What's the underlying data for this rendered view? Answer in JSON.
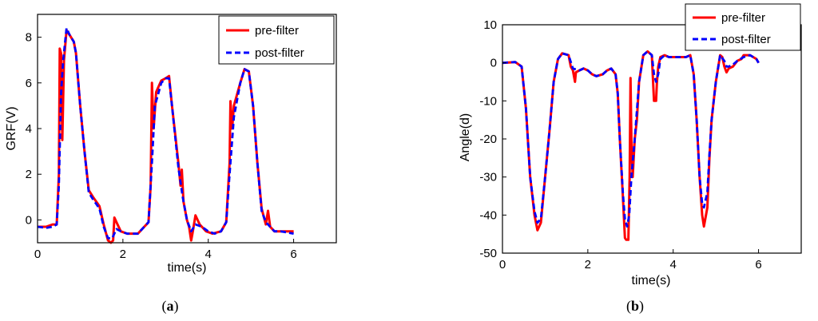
{
  "chart_data": [
    {
      "type": "line",
      "caption": {
        "open": "(",
        "letter": "a",
        "close": ")"
      },
      "xlabel": "time(s)",
      "ylabel": "GRF(V)",
      "xlim": [
        0,
        7
      ],
      "ylim": [
        -1,
        9
      ],
      "xticks": [
        0,
        2,
        4,
        6
      ],
      "yticks": [
        0,
        2,
        4,
        6,
        8
      ],
      "legend_position": "top-right",
      "grid": false,
      "series": [
        {
          "name": "pre-filter",
          "color": "#ff0000",
          "style": "solid",
          "points": [
            [
              0,
              -0.3
            ],
            [
              0.2,
              -0.3
            ],
            [
              0.35,
              -0.2
            ],
            [
              0.45,
              -0.2
            ],
            [
              0.5,
              2.0
            ],
            [
              0.52,
              7.5
            ],
            [
              0.55,
              7.3
            ],
            [
              0.58,
              3.5
            ],
            [
              0.62,
              7.0
            ],
            [
              0.68,
              8.3
            ],
            [
              0.75,
              8.1
            ],
            [
              0.85,
              7.8
            ],
            [
              0.9,
              7.3
            ],
            [
              1.0,
              5.0
            ],
            [
              1.1,
              3.0
            ],
            [
              1.2,
              1.3
            ],
            [
              1.3,
              1.0
            ],
            [
              1.45,
              0.6
            ],
            [
              1.55,
              -0.2
            ],
            [
              1.65,
              -0.9
            ],
            [
              1.72,
              -1.0
            ],
            [
              1.77,
              -0.9
            ],
            [
              1.8,
              0.1
            ],
            [
              1.85,
              -0.1
            ],
            [
              1.95,
              -0.5
            ],
            [
              2.1,
              -0.6
            ],
            [
              2.35,
              -0.6
            ],
            [
              2.5,
              -0.3
            ],
            [
              2.6,
              -0.1
            ],
            [
              2.65,
              1.5
            ],
            [
              2.68,
              6.0
            ],
            [
              2.72,
              4.0
            ],
            [
              2.78,
              5.6
            ],
            [
              2.9,
              6.1
            ],
            [
              3.0,
              6.2
            ],
            [
              3.08,
              6.3
            ],
            [
              3.15,
              5.0
            ],
            [
              3.3,
              2.5
            ],
            [
              3.35,
              1.5
            ],
            [
              3.38,
              2.2
            ],
            [
              3.42,
              0.8
            ],
            [
              3.5,
              0.0
            ],
            [
              3.55,
              -0.3
            ],
            [
              3.6,
              -0.9
            ],
            [
              3.63,
              -0.6
            ],
            [
              3.7,
              0.2
            ],
            [
              3.8,
              -0.2
            ],
            [
              3.95,
              -0.5
            ],
            [
              4.1,
              -0.6
            ],
            [
              4.3,
              -0.5
            ],
            [
              4.42,
              -0.1
            ],
            [
              4.5,
              2.5
            ],
            [
              4.52,
              5.2
            ],
            [
              4.56,
              4.0
            ],
            [
              4.6,
              5.0
            ],
            [
              4.75,
              6.0
            ],
            [
              4.85,
              6.6
            ],
            [
              4.95,
              6.5
            ],
            [
              5.05,
              5.0
            ],
            [
              5.15,
              2.5
            ],
            [
              5.25,
              0.5
            ],
            [
              5.35,
              -0.2
            ],
            [
              5.4,
              0.4
            ],
            [
              5.45,
              -0.3
            ],
            [
              5.55,
              -0.5
            ],
            [
              5.7,
              -0.5
            ],
            [
              6.0,
              -0.5
            ]
          ]
        },
        {
          "name": "post-filter",
          "color": "#0000ff",
          "style": "dashed",
          "points": [
            [
              0,
              -0.3
            ],
            [
              0.2,
              -0.35
            ],
            [
              0.35,
              -0.3
            ],
            [
              0.45,
              -0.2
            ],
            [
              0.5,
              1.5
            ],
            [
              0.55,
              5.5
            ],
            [
              0.6,
              7.0
            ],
            [
              0.68,
              8.4
            ],
            [
              0.75,
              8.1
            ],
            [
              0.85,
              7.8
            ],
            [
              0.9,
              7.3
            ],
            [
              1.0,
              5.0
            ],
            [
              1.1,
              3.0
            ],
            [
              1.2,
              1.2
            ],
            [
              1.3,
              0.9
            ],
            [
              1.45,
              0.5
            ],
            [
              1.55,
              -0.3
            ],
            [
              1.65,
              -0.8
            ],
            [
              1.75,
              -0.8
            ],
            [
              1.85,
              -0.4
            ],
            [
              1.95,
              -0.5
            ],
            [
              2.1,
              -0.6
            ],
            [
              2.35,
              -0.6
            ],
            [
              2.5,
              -0.3
            ],
            [
              2.6,
              -0.1
            ],
            [
              2.68,
              2.5
            ],
            [
              2.75,
              5.0
            ],
            [
              2.9,
              6.0
            ],
            [
              3.0,
              6.2
            ],
            [
              3.08,
              6.2
            ],
            [
              3.15,
              5.0
            ],
            [
              3.3,
              2.3
            ],
            [
              3.4,
              1.0
            ],
            [
              3.5,
              0.0
            ],
            [
              3.6,
              -0.5
            ],
            [
              3.7,
              -0.2
            ],
            [
              3.85,
              -0.3
            ],
            [
              4.0,
              -0.5
            ],
            [
              4.15,
              -0.6
            ],
            [
              4.3,
              -0.5
            ],
            [
              4.42,
              -0.1
            ],
            [
              4.5,
              2.0
            ],
            [
              4.6,
              4.5
            ],
            [
              4.75,
              6.0
            ],
            [
              4.85,
              6.6
            ],
            [
              4.95,
              6.5
            ],
            [
              5.05,
              5.0
            ],
            [
              5.15,
              2.5
            ],
            [
              5.25,
              0.4
            ],
            [
              5.35,
              -0.1
            ],
            [
              5.45,
              -0.3
            ],
            [
              5.55,
              -0.5
            ],
            [
              5.7,
              -0.5
            ],
            [
              6.0,
              -0.6
            ]
          ]
        }
      ]
    },
    {
      "type": "line",
      "caption": {
        "open": "(",
        "letter": "b",
        "close": ")"
      },
      "xlabel": "time(s)",
      "ylabel": "Angle(d)",
      "xlim": [
        0,
        7
      ],
      "ylim": [
        -50,
        10
      ],
      "xticks": [
        0,
        2,
        4,
        6
      ],
      "yticks": [
        10,
        0,
        -10,
        -20,
        -30,
        -40,
        -50
      ],
      "legend_position": "top-right",
      "grid": false,
      "series": [
        {
          "name": "pre-filter",
          "color": "#ff0000",
          "style": "solid",
          "points": [
            [
              0,
              0
            ],
            [
              0.3,
              0.2
            ],
            [
              0.45,
              -1.0
            ],
            [
              0.55,
              -12
            ],
            [
              0.65,
              -30
            ],
            [
              0.75,
              -40
            ],
            [
              0.82,
              -44
            ],
            [
              0.9,
              -42
            ],
            [
              1.0,
              -30
            ],
            [
              1.1,
              -18
            ],
            [
              1.2,
              -5
            ],
            [
              1.3,
              1.0
            ],
            [
              1.4,
              2.5
            ],
            [
              1.55,
              2.0
            ],
            [
              1.6,
              -1.0
            ],
            [
              1.65,
              -2.0
            ],
            [
              1.7,
              -5.0
            ],
            [
              1.72,
              -2.5
            ],
            [
              1.8,
              -2.0
            ],
            [
              1.9,
              -1.5
            ],
            [
              2.0,
              -2.0
            ],
            [
              2.1,
              -3.0
            ],
            [
              2.2,
              -3.5
            ],
            [
              2.35,
              -3.0
            ],
            [
              2.45,
              -2.0
            ],
            [
              2.55,
              -1.5
            ],
            [
              2.65,
              -3.0
            ],
            [
              2.7,
              -8
            ],
            [
              2.75,
              -20
            ],
            [
              2.82,
              -35
            ],
            [
              2.87,
              -46
            ],
            [
              2.9,
              -46.5
            ],
            [
              2.95,
              -46.5
            ],
            [
              2.98,
              -30
            ],
            [
              3.0,
              -4
            ],
            [
              3.02,
              -20
            ],
            [
              3.05,
              -30
            ],
            [
              3.1,
              -20
            ],
            [
              3.15,
              -15
            ],
            [
              3.2,
              -5
            ],
            [
              3.3,
              2.0
            ],
            [
              3.4,
              3.0
            ],
            [
              3.5,
              2.0
            ],
            [
              3.52,
              -3
            ],
            [
              3.55,
              -10
            ],
            [
              3.6,
              -10
            ],
            [
              3.62,
              -5
            ],
            [
              3.65,
              -1
            ],
            [
              3.7,
              1.5
            ],
            [
              3.8,
              2.0
            ],
            [
              3.9,
              1.5
            ],
            [
              4.1,
              1.5
            ],
            [
              4.3,
              1.5
            ],
            [
              4.4,
              2.0
            ],
            [
              4.48,
              -3
            ],
            [
              4.55,
              -15
            ],
            [
              4.62,
              -30
            ],
            [
              4.68,
              -40
            ],
            [
              4.72,
              -43
            ],
            [
              4.8,
              -38
            ],
            [
              4.85,
              -25
            ],
            [
              4.9,
              -15
            ],
            [
              5.0,
              -5
            ],
            [
              5.1,
              2.0
            ],
            [
              5.15,
              1.5
            ],
            [
              5.2,
              -1.0
            ],
            [
              5.25,
              -2.5
            ],
            [
              5.3,
              -1.5
            ],
            [
              5.4,
              -1.0
            ],
            [
              5.5,
              0.5
            ],
            [
              5.6,
              1.0
            ],
            [
              5.65,
              2.0
            ],
            [
              5.8,
              2.0
            ],
            [
              5.95,
              1.0
            ],
            [
              6.0,
              0.0
            ]
          ]
        },
        {
          "name": "post-filter",
          "color": "#0000ff",
          "style": "dashed",
          "points": [
            [
              0,
              0
            ],
            [
              0.3,
              0.2
            ],
            [
              0.45,
              -1.0
            ],
            [
              0.55,
              -12
            ],
            [
              0.65,
              -30
            ],
            [
              0.75,
              -39
            ],
            [
              0.82,
              -42
            ],
            [
              0.9,
              -41
            ],
            [
              1.0,
              -30
            ],
            [
              1.1,
              -18
            ],
            [
              1.2,
              -5
            ],
            [
              1.3,
              1.0
            ],
            [
              1.4,
              2.5
            ],
            [
              1.55,
              2.0
            ],
            [
              1.65,
              -1.5
            ],
            [
              1.8,
              -2.0
            ],
            [
              1.9,
              -1.5
            ],
            [
              2.0,
              -2.0
            ],
            [
              2.1,
              -3.0
            ],
            [
              2.2,
              -3.5
            ],
            [
              2.35,
              -3.0
            ],
            [
              2.45,
              -2.0
            ],
            [
              2.55,
              -1.5
            ],
            [
              2.65,
              -3.0
            ],
            [
              2.7,
              -8
            ],
            [
              2.75,
              -20
            ],
            [
              2.82,
              -34
            ],
            [
              2.87,
              -41
            ],
            [
              2.92,
              -43
            ],
            [
              2.97,
              -40
            ],
            [
              3.02,
              -30
            ],
            [
              3.1,
              -20
            ],
            [
              3.2,
              -5
            ],
            [
              3.3,
              2.0
            ],
            [
              3.4,
              3.0
            ],
            [
              3.5,
              2.0
            ],
            [
              3.55,
              -3.0
            ],
            [
              3.6,
              -5.0
            ],
            [
              3.65,
              -3.0
            ],
            [
              3.7,
              1.0
            ],
            [
              3.8,
              2.0
            ],
            [
              3.9,
              1.5
            ],
            [
              4.1,
              1.5
            ],
            [
              4.3,
              1.5
            ],
            [
              4.4,
              2.0
            ],
            [
              4.48,
              -3
            ],
            [
              4.55,
              -15
            ],
            [
              4.62,
              -30
            ],
            [
              4.68,
              -37
            ],
            [
              4.72,
              -38
            ],
            [
              4.8,
              -34
            ],
            [
              4.85,
              -24
            ],
            [
              4.9,
              -15
            ],
            [
              5.0,
              -5
            ],
            [
              5.1,
              2.0
            ],
            [
              5.2,
              0.5
            ],
            [
              5.25,
              -1.0
            ],
            [
              5.3,
              -1.0
            ],
            [
              5.4,
              -0.5
            ],
            [
              5.5,
              0.5
            ],
            [
              5.65,
              1.5
            ],
            [
              5.8,
              2.0
            ],
            [
              5.95,
              1.0
            ],
            [
              6.0,
              0.0
            ]
          ]
        }
      ]
    }
  ]
}
